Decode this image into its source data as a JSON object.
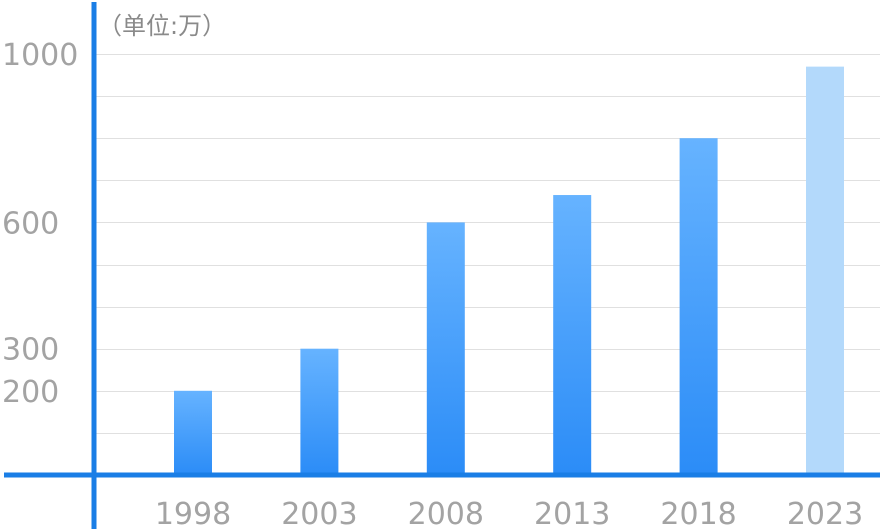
{
  "chart_data": {
    "type": "bar",
    "unit_label": "（单位:万）",
    "categories": [
      "1998",
      "2003",
      "2008",
      "2013",
      "2018",
      "2023"
    ],
    "values": [
      200,
      300,
      600,
      665,
      800,
      970
    ],
    "highlight_last": true,
    "y_ticks": [
      {
        "value": 1000,
        "label": "1000"
      },
      {
        "value": 600,
        "label": "600"
      },
      {
        "value": 300,
        "label": "300"
      },
      {
        "value": 200,
        "label": "200"
      }
    ],
    "gridlines": [
      100,
      200,
      300,
      400,
      500,
      600,
      700,
      800,
      900,
      1000
    ],
    "ylim": [
      0,
      1000
    ],
    "grid": true,
    "colors": {
      "axis": "#1a7ee6",
      "bar_top": "#66b3ff",
      "bar_bottom": "#2b8cf7",
      "bar_highlight": "#b3d9fb",
      "grid": "#e0e0e0"
    }
  }
}
